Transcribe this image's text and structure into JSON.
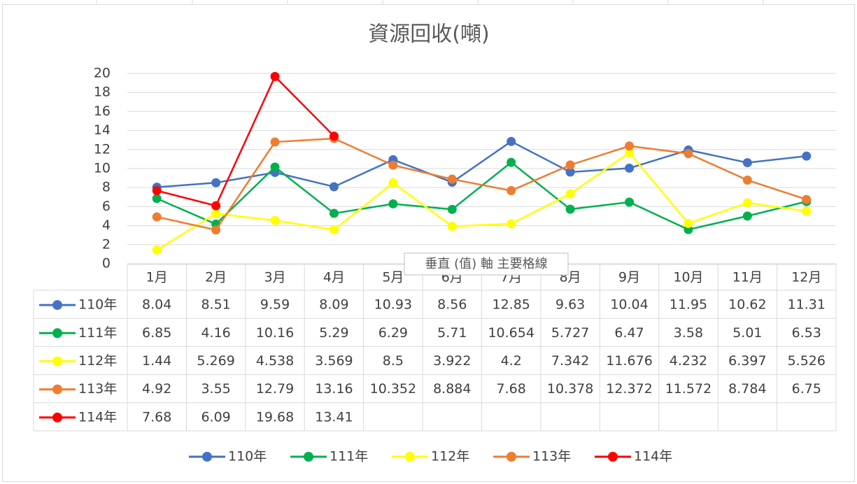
{
  "chart_data": {
    "type": "line",
    "title": "資源回收(噸)",
    "categories": [
      "1月",
      "2月",
      "3月",
      "4月",
      "5月",
      "6月",
      "7月",
      "8月",
      "9月",
      "10月",
      "11月",
      "12月"
    ],
    "series": [
      {
        "name": "110年",
        "color": "#4472c4",
        "values": [
          8.04,
          8.51,
          9.59,
          8.09,
          10.93,
          8.56,
          12.85,
          9.63,
          10.04,
          11.95,
          10.62,
          11.31
        ]
      },
      {
        "name": "111年",
        "color": "#00b050",
        "values": [
          6.85,
          4.16,
          10.16,
          5.29,
          6.29,
          5.71,
          10.654,
          5.727,
          6.47,
          3.58,
          5.01,
          6.53
        ]
      },
      {
        "name": "112年",
        "color": "#ffff00",
        "values": [
          1.44,
          5.269,
          4.538,
          3.569,
          8.5,
          3.922,
          4.2,
          7.342,
          11.676,
          4.232,
          6.397,
          5.526
        ]
      },
      {
        "name": "113年",
        "color": "#ed7d31",
        "values": [
          4.92,
          3.55,
          12.79,
          13.16,
          10.352,
          8.884,
          7.68,
          10.378,
          12.372,
          11.572,
          8.784,
          6.75
        ]
      },
      {
        "name": "114年",
        "color": "#ff0000",
        "values": [
          7.68,
          6.09,
          19.68,
          13.41,
          null,
          null,
          null,
          null,
          null,
          null,
          null,
          null
        ]
      }
    ],
    "ylim": [
      0,
      20
    ],
    "yticks": [
      0,
      2,
      4,
      6,
      8,
      10,
      12,
      14,
      16,
      18,
      20
    ],
    "grid": true,
    "data_table": true,
    "legend": "bottom",
    "tooltip": "垂直 (值) 軸 主要格線"
  }
}
